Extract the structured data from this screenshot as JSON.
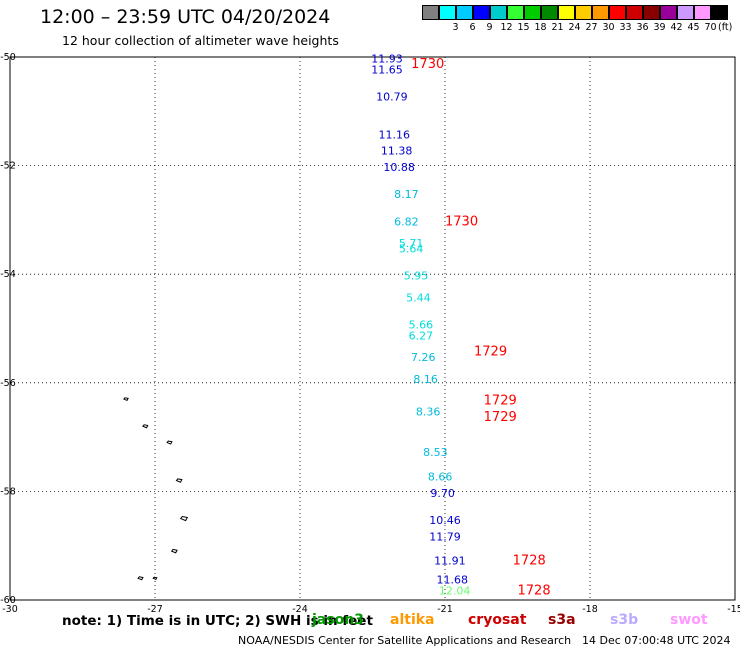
{
  "header": {
    "title": "12:00 – 23:59 UTC 04/20/2024",
    "subtitle": "12 hour collection of altimeter wave heights"
  },
  "legend": {
    "unit": "(ft)",
    "colors": [
      "#808080",
      "#00ffff",
      "#00ccff",
      "#0000ff",
      "#00cccc",
      "#33ff33",
      "#00cc00",
      "#008800",
      "#ffff00",
      "#ffcc00",
      "#ff9900",
      "#ff0000",
      "#cc0000",
      "#880000",
      "#990099",
      "#cc99ff",
      "#ff99ff",
      "#000000"
    ],
    "labels": [
      "",
      "3",
      "6",
      "9",
      "12",
      "15",
      "18",
      "21",
      "24",
      "27",
      "30",
      "33",
      "36",
      "39",
      "42",
      "45",
      "70"
    ]
  },
  "chart_data": {
    "type": "scatter",
    "title": "12:00 – 23:59 UTC 04/20/2024",
    "subtitle": "12 hour collection of altimeter wave heights",
    "xlabel": "",
    "ylabel": "",
    "xlim": [
      -30,
      -15
    ],
    "ylim": [
      -60,
      -50
    ],
    "x_ticks": [
      "-30",
      "-27",
      "-24",
      "-21",
      "-18",
      "-15"
    ],
    "y_ticks": [
      "-50",
      "-52",
      "-54",
      "-56",
      "-58",
      "-60"
    ],
    "grid": true,
    "units": "ft",
    "wave_heights": [
      {
        "lon": -22.2,
        "lat": -50.1,
        "text": "11.93",
        "color": "#0000cc"
      },
      {
        "lon": -22.2,
        "lat": -50.3,
        "text": "11.65",
        "color": "#0000cc"
      },
      {
        "lon": -22.1,
        "lat": -50.8,
        "text": "10.79",
        "color": "#0000cc"
      },
      {
        "lon": -22.05,
        "lat": -51.5,
        "text": "11.16",
        "color": "#0000cc"
      },
      {
        "lon": -22.0,
        "lat": -51.8,
        "text": "11.38",
        "color": "#0000cc"
      },
      {
        "lon": -21.95,
        "lat": -52.1,
        "text": "10.88",
        "color": "#0000cc"
      },
      {
        "lon": -21.8,
        "lat": -52.6,
        "text": "8.17",
        "color": "#00bbdd"
      },
      {
        "lon": -21.8,
        "lat": -53.1,
        "text": "6.82",
        "color": "#00bbdd"
      },
      {
        "lon": -21.7,
        "lat": -53.5,
        "text": "5.71",
        "color": "#00dddd"
      },
      {
        "lon": -21.7,
        "lat": -53.6,
        "text": "5.64",
        "color": "#00dddd"
      },
      {
        "lon": -21.6,
        "lat": -54.1,
        "text": "5.95",
        "color": "#00dddd"
      },
      {
        "lon": -21.55,
        "lat": -54.5,
        "text": "5.44",
        "color": "#00dddd"
      },
      {
        "lon": -21.5,
        "lat": -55.0,
        "text": "5.66",
        "color": "#00dddd"
      },
      {
        "lon": -21.5,
        "lat": -55.2,
        "text": "6.27",
        "color": "#00dddd"
      },
      {
        "lon": -21.45,
        "lat": -55.6,
        "text": "7.26",
        "color": "#00bbdd"
      },
      {
        "lon": -21.4,
        "lat": -56.0,
        "text": "8.16",
        "color": "#00bbdd"
      },
      {
        "lon": -21.35,
        "lat": -56.6,
        "text": "8.36",
        "color": "#00bbdd"
      },
      {
        "lon": -21.2,
        "lat": -57.35,
        "text": "8.53",
        "color": "#00bbdd"
      },
      {
        "lon": -21.1,
        "lat": -57.8,
        "text": "8.66",
        "color": "#00bbdd"
      },
      {
        "lon": -21.05,
        "lat": -58.1,
        "text": "9.70",
        "color": "#0000cc"
      },
      {
        "lon": -21.0,
        "lat": -58.6,
        "text": "10.46",
        "color": "#0000cc"
      },
      {
        "lon": -21.0,
        "lat": -58.9,
        "text": "11.79",
        "color": "#0000cc"
      },
      {
        "lon": -20.9,
        "lat": -59.35,
        "text": "11.91",
        "color": "#0000cc"
      },
      {
        "lon": -20.85,
        "lat": -59.7,
        "text": "11.68",
        "color": "#0000cc"
      },
      {
        "lon": -20.8,
        "lat": -59.9,
        "text": "12.04",
        "color": "#66ff66"
      }
    ],
    "time_labels": [
      {
        "lon": -21.7,
        "lat": -50.2,
        "text": "1730",
        "color": "#ff0000"
      },
      {
        "lon": -21.0,
        "lat": -53.1,
        "text": "1730",
        "color": "#ff0000"
      },
      {
        "lon": -20.4,
        "lat": -55.5,
        "text": "1729",
        "color": "#ff0000"
      },
      {
        "lon": -20.2,
        "lat": -56.4,
        "text": "1729",
        "color": "#ff0000"
      },
      {
        "lon": -20.2,
        "lat": -56.7,
        "text": "1729",
        "color": "#ff0000"
      },
      {
        "lon": -19.6,
        "lat": -59.35,
        "text": "1728",
        "color": "#ff0000"
      },
      {
        "lon": -19.5,
        "lat": -59.9,
        "text": "1728",
        "color": "#ff0000"
      }
    ]
  },
  "note": {
    "text": "note: 1) Time is in UTC; 2) SWH is in feet"
  },
  "satellites": [
    {
      "name": "jason3",
      "color": "#009900"
    },
    {
      "name": "altika",
      "color": "#ff9900"
    },
    {
      "name": "cryosat",
      "color": "#cc0000"
    },
    {
      "name": "s3a",
      "color": "#990000"
    },
    {
      "name": "s3b",
      "color": "#bbaaff"
    },
    {
      "name": "swot",
      "color": "#ff99ff"
    }
  ],
  "footer": {
    "credit": "NOAA/NESDIS Center for Satellite Applications and Research",
    "timestamp": "14 Dec 07:00:48 UTC 2024"
  }
}
